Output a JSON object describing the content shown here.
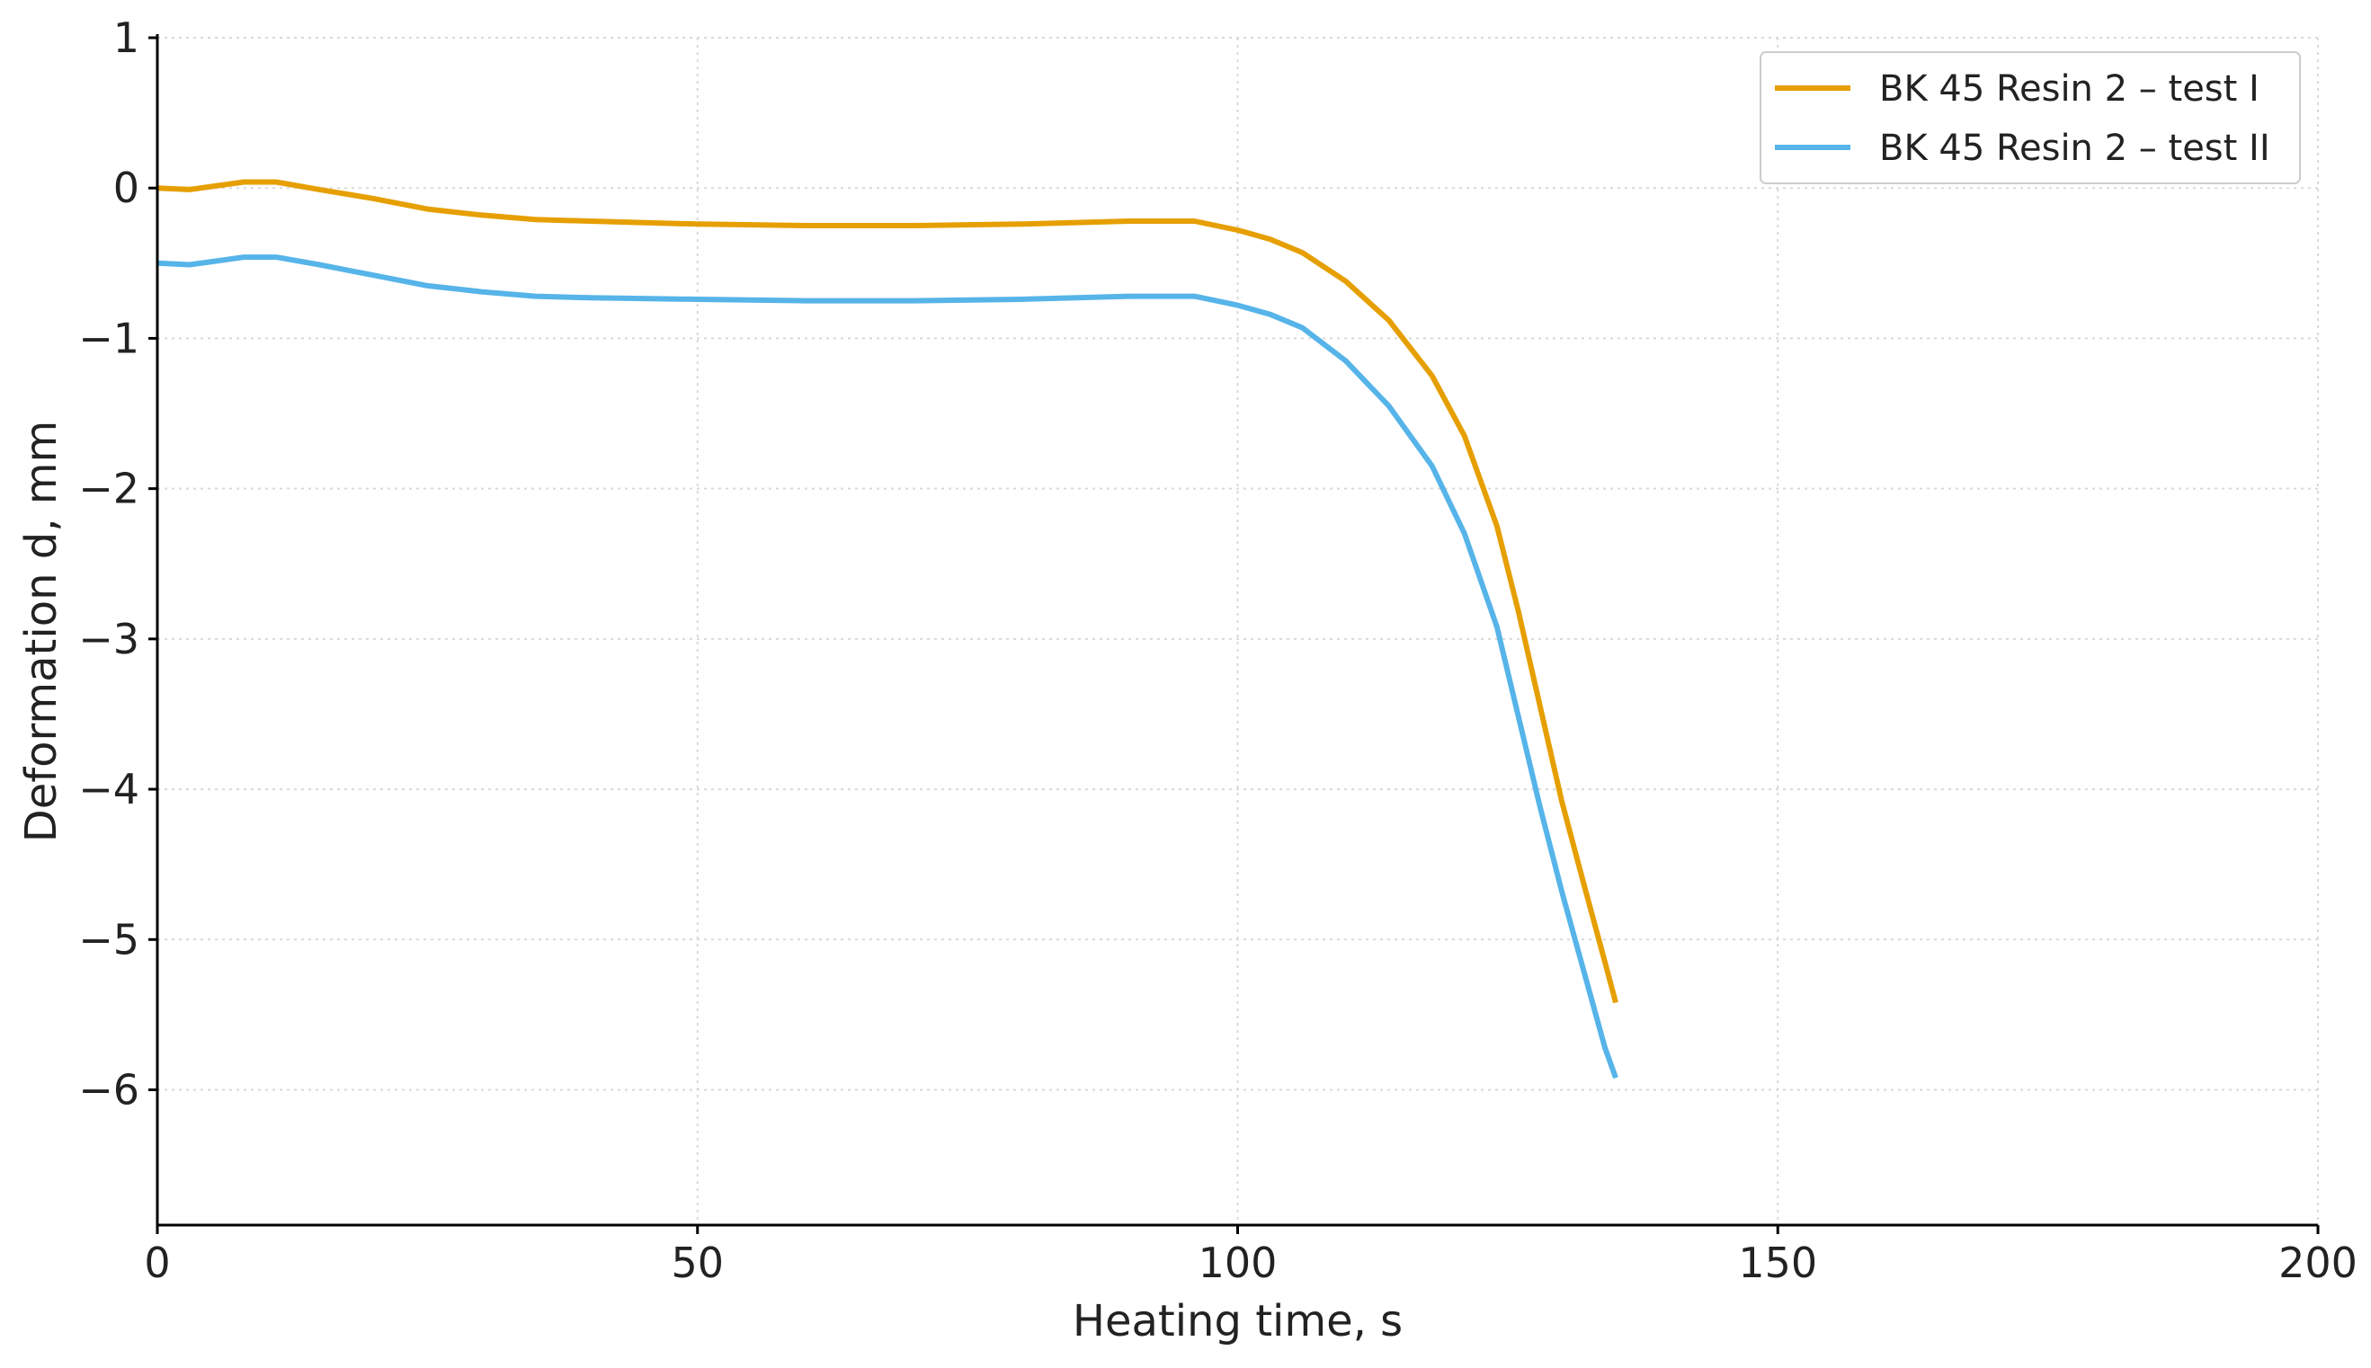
{
  "chart_data": {
    "type": "line",
    "title": "",
    "xlabel": "Heating time, s",
    "ylabel": "Deformation d, mm",
    "xlim": [
      0,
      200
    ],
    "ylim": [
      -6.9,
      1.0
    ],
    "xticks": [
      0,
      50,
      100,
      150,
      200
    ],
    "yticks": [
      1,
      0,
      -1,
      -2,
      -3,
      -4,
      -5,
      -6
    ],
    "xtick_labels": [
      "0",
      "50",
      "100",
      "150",
      "200"
    ],
    "ytick_labels": [
      "1",
      "0",
      "−1",
      "−2",
      "−3",
      "−4",
      "−5",
      "−6"
    ],
    "grid": true,
    "legend_position": "top-right",
    "series": [
      {
        "name": "BK 45 Resin 2 – test I",
        "color": "#E69F00",
        "x": [
          0,
          3,
          6,
          8,
          11,
          15,
          20,
          25,
          30,
          35,
          40,
          50,
          60,
          70,
          80,
          90,
          96,
          100,
          103,
          106,
          110,
          114,
          118,
          121,
          124,
          126,
          128,
          130,
          132,
          134,
          135
        ],
        "y": [
          0.0,
          -0.01,
          0.02,
          0.04,
          0.04,
          -0.01,
          -0.07,
          -0.14,
          -0.18,
          -0.21,
          -0.22,
          -0.24,
          -0.25,
          -0.25,
          -0.24,
          -0.22,
          -0.22,
          -0.28,
          -0.34,
          -0.43,
          -0.62,
          -0.88,
          -1.25,
          -1.65,
          -2.25,
          -2.82,
          -3.45,
          -4.08,
          -4.62,
          -5.15,
          -5.42
        ]
      },
      {
        "name": "BK 45 Resin 2 – test II",
        "color": "#56B4E9",
        "x": [
          0,
          3,
          6,
          8,
          11,
          15,
          20,
          25,
          30,
          35,
          40,
          50,
          60,
          70,
          80,
          90,
          96,
          100,
          103,
          106,
          110,
          114,
          118,
          121,
          124,
          126,
          128,
          130,
          132,
          134,
          135
        ],
        "y": [
          -0.5,
          -0.51,
          -0.48,
          -0.46,
          -0.46,
          -0.51,
          -0.58,
          -0.65,
          -0.69,
          -0.72,
          -0.73,
          -0.74,
          -0.75,
          -0.75,
          -0.74,
          -0.72,
          -0.72,
          -0.78,
          -0.84,
          -0.93,
          -1.15,
          -1.45,
          -1.85,
          -2.3,
          -2.92,
          -3.52,
          -4.12,
          -4.68,
          -5.2,
          -5.72,
          -5.92
        ]
      }
    ]
  }
}
